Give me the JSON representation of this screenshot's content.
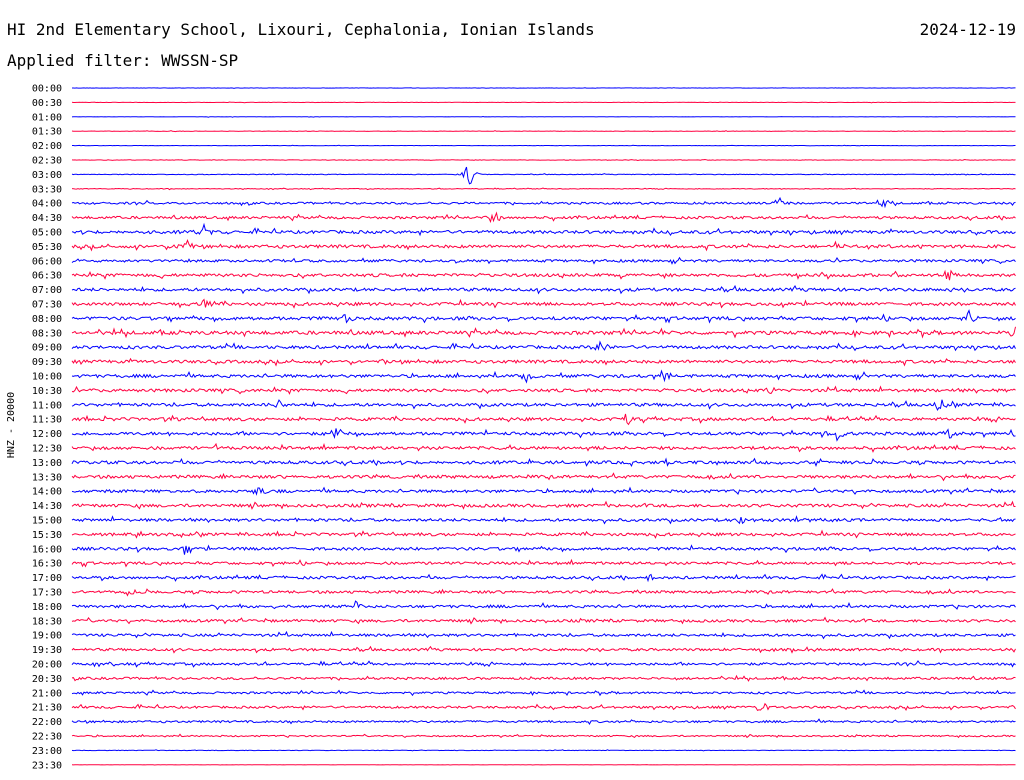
{
  "header": {
    "title": "HI 2nd Elementary School, Lixouri, Cephalonia, Ionian Islands",
    "date": "2024-12-19",
    "filter": "Applied filter: WWSSN-SP"
  },
  "chart_data": {
    "type": "line",
    "title": "HI 2nd Elementary School, Lixouri, Cephalonia, Ionian Islands",
    "ylabel": "HNZ - 20000",
    "xlabel": "",
    "colors": [
      "#0000ff",
      "#ff0040"
    ],
    "grid": false,
    "tick_labels": [
      "00:00",
      "00:30",
      "01:00",
      "01:30",
      "02:00",
      "02:30",
      "03:00",
      "03:30",
      "04:00",
      "04:30",
      "05:00",
      "05:30",
      "06:00",
      "06:30",
      "07:00",
      "07:30",
      "08:00",
      "08:30",
      "09:00",
      "09:30",
      "10:00",
      "10:30",
      "11:00",
      "11:30",
      "12:00",
      "12:30",
      "13:00",
      "13:30",
      "14:00",
      "14:30",
      "15:00",
      "15:30",
      "16:00",
      "16:30",
      "17:00",
      "17:30",
      "18:00",
      "18:30",
      "19:00",
      "19:30",
      "20:00",
      "20:30",
      "21:00",
      "21:30",
      "22:00",
      "22:30",
      "23:00",
      "23:30"
    ],
    "noise_level": [
      0.3,
      0.3,
      0.3,
      0.4,
      0.3,
      0.4,
      0.6,
      0.7,
      2,
      2.5,
      3,
      3,
      2.5,
      3,
      3,
      3,
      3.2,
      3.5,
      3,
      3,
      3,
      3,
      3,
      3,
      3,
      3,
      3,
      3,
      2.8,
      3,
      2.8,
      2.8,
      2.8,
      2.6,
      2.6,
      2.6,
      2.6,
      2.6,
      2.6,
      2.4,
      2.4,
      2.2,
      2,
      2.2,
      2,
      1.4,
      0.5,
      0.2
    ],
    "events": [
      {
        "row": 6,
        "x": 0.42,
        "amp": 16
      },
      {
        "row": 8,
        "x": 0.75,
        "amp": 10
      },
      {
        "row": 8,
        "x": 0.86,
        "amp": 5
      },
      {
        "row": 9,
        "x": 0.45,
        "amp": 6
      },
      {
        "row": 10,
        "x": 0.14,
        "amp": 7
      },
      {
        "row": 11,
        "x": 0.12,
        "amp": 8
      },
      {
        "row": 11,
        "x": 0.81,
        "amp": 6
      },
      {
        "row": 13,
        "x": 0.93,
        "amp": 8
      },
      {
        "row": 15,
        "x": 0.14,
        "amp": 6
      },
      {
        "row": 16,
        "x": 0.29,
        "amp": 8
      },
      {
        "row": 16,
        "x": 0.95,
        "amp": 9
      },
      {
        "row": 17,
        "x": 1.0,
        "amp": 8
      },
      {
        "row": 18,
        "x": 0.56,
        "amp": 7
      },
      {
        "row": 20,
        "x": 0.48,
        "amp": 8
      },
      {
        "row": 20,
        "x": 0.63,
        "amp": 7
      },
      {
        "row": 21,
        "x": 0.74,
        "amp": 7
      },
      {
        "row": 22,
        "x": 0.22,
        "amp": 6
      },
      {
        "row": 22,
        "x": 0.92,
        "amp": 8
      },
      {
        "row": 23,
        "x": 0.59,
        "amp": 7
      },
      {
        "row": 24,
        "x": 0.28,
        "amp": 8
      },
      {
        "row": 24,
        "x": 0.81,
        "amp": 11
      },
      {
        "row": 24,
        "x": 0.93,
        "amp": 7
      },
      {
        "row": 25,
        "x": 0.15,
        "amp": 6
      },
      {
        "row": 28,
        "x": 0.2,
        "amp": 7
      },
      {
        "row": 30,
        "x": 0.71,
        "amp": 8
      },
      {
        "row": 32,
        "x": 0.12,
        "amp": 7
      },
      {
        "row": 34,
        "x": 0.61,
        "amp": 6
      },
      {
        "row": 35,
        "x": 0.06,
        "amp": 6
      },
      {
        "row": 36,
        "x": 0.3,
        "amp": 6
      },
      {
        "row": 43,
        "x": 0.73,
        "amp": 7
      }
    ]
  }
}
